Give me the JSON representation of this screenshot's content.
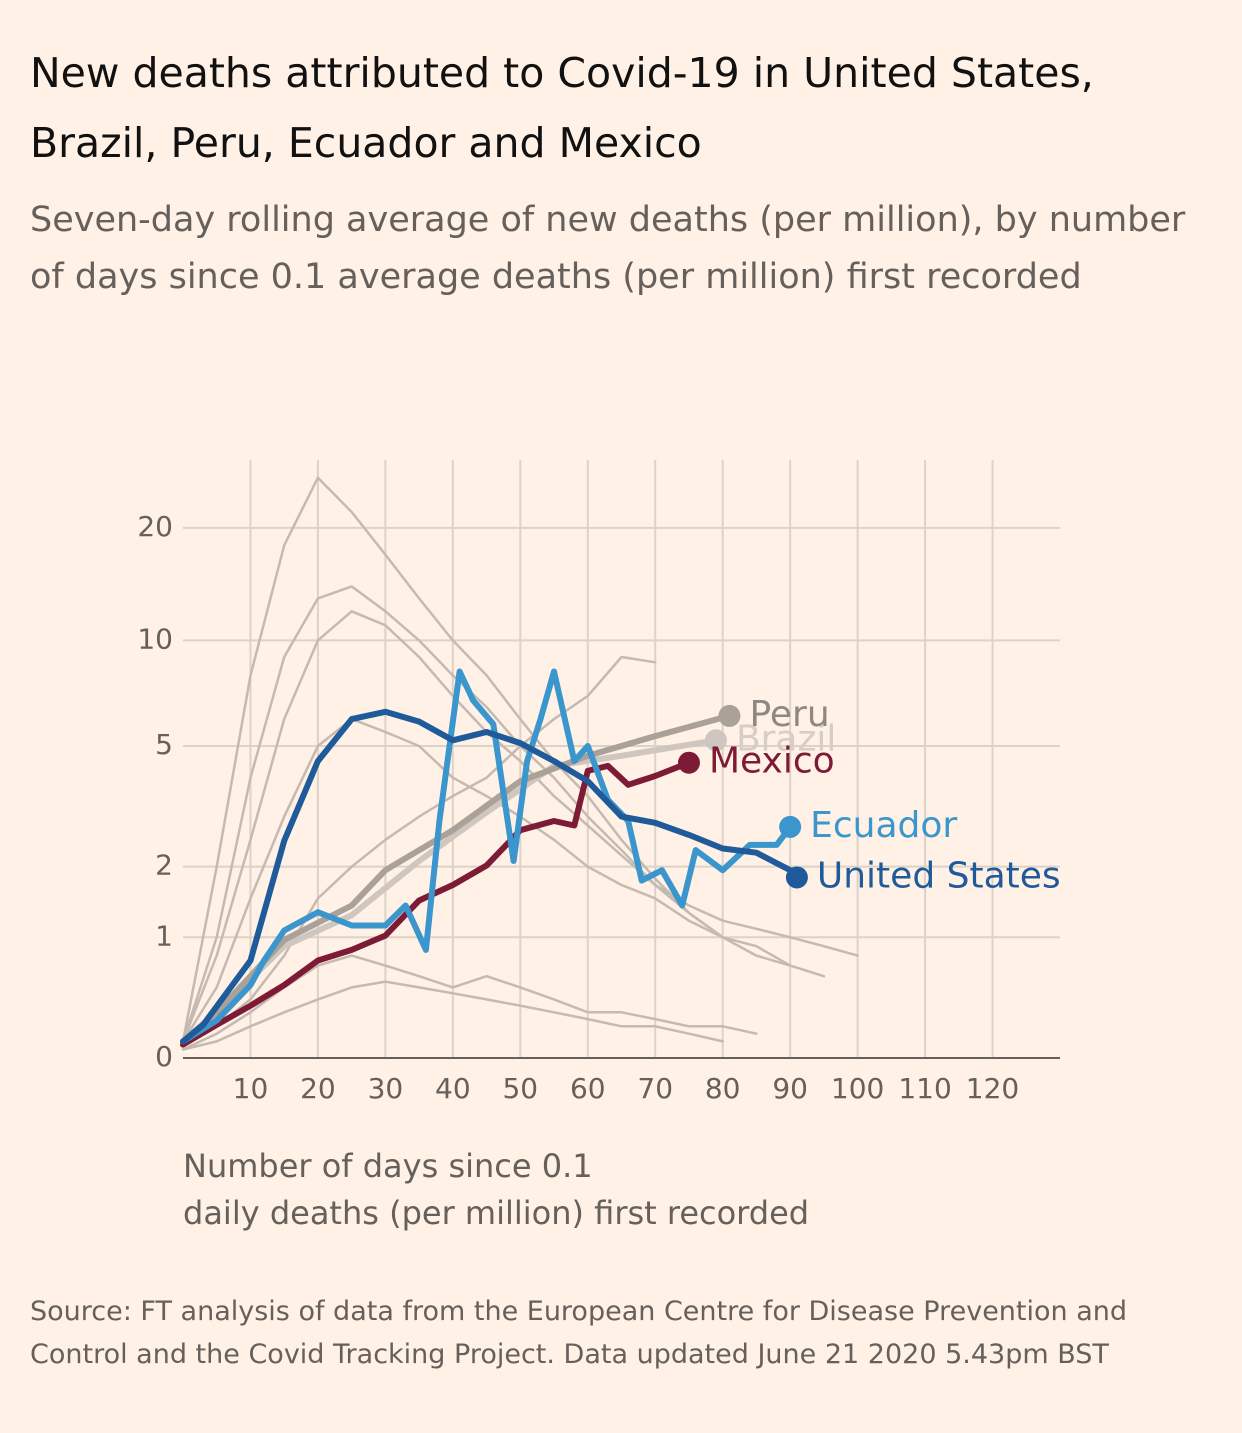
{
  "chart_data": {
    "type": "line",
    "title": "New deaths attributed to Covid-19 in United States, Brazil, Peru, Ecuador and Mexico",
    "subtitle": "Seven-day rolling average of new deaths (per million), by number of days since 0.1 average deaths (per million) first recorded",
    "x_label": [
      "Number of days since 0.1",
      "daily deaths (per million) first recorded"
    ],
    "source": "Source: FT analysis of data from the European Centre for Disease Prevention and Control and the Covid Tracking Project. Data updated June 21 2020 5.43pm BST",
    "yscale": "log1p",
    "xlim": [
      0,
      130
    ],
    "ylim": [
      0,
      30
    ],
    "xticks": [
      10,
      20,
      30,
      40,
      50,
      60,
      70,
      80,
      90,
      100,
      110,
      120
    ],
    "yticks": [
      0,
      1,
      2,
      5,
      10,
      20
    ],
    "grid": true,
    "background": {
      "color": "#c4bab2",
      "x": [
        0,
        5,
        10,
        15,
        20,
        25,
        30,
        35,
        40,
        45,
        50,
        55,
        60,
        65,
        70,
        75,
        80,
        85,
        90,
        95,
        100
      ],
      "lines": [
        [
          0.1,
          2,
          8,
          18,
          27,
          22,
          17,
          13,
          10,
          8,
          6,
          4.5,
          3.5,
          2.5,
          1.8,
          1.3,
          1,
          null,
          null,
          null,
          null
        ],
        [
          0.1,
          1,
          4,
          9,
          13,
          14,
          12,
          10,
          8,
          6.5,
          5,
          4,
          3,
          2.3,
          1.7,
          1.3,
          1,
          0.8,
          0.7,
          null,
          null
        ],
        [
          0.1,
          0.2,
          0.4,
          0.8,
          1.5,
          2,
          2.5,
          3,
          3.5,
          4,
          5,
          6,
          7,
          9,
          8.7,
          null,
          null,
          null,
          null,
          null,
          null
        ],
        [
          0.1,
          0.5,
          1.5,
          3,
          5,
          6,
          5.5,
          5,
          4,
          3.5,
          3,
          2.5,
          2,
          1.7,
          1.5,
          1.2,
          1,
          0.9,
          0.7,
          0.6,
          null
        ],
        [
          0.05,
          0.1,
          0.2,
          0.3,
          0.4,
          0.5,
          0.55,
          0.5,
          0.45,
          0.4,
          0.35,
          0.3,
          0.25,
          0.2,
          0.2,
          0.15,
          0.1,
          null,
          null,
          null,
          null
        ],
        [
          0.05,
          0.15,
          0.3,
          0.5,
          0.7,
          0.8,
          0.7,
          0.6,
          0.5,
          0.6,
          0.5,
          0.4,
          0.3,
          0.3,
          0.25,
          0.2,
          0.2,
          0.15,
          null,
          null,
          null
        ],
        [
          0.1,
          0.8,
          2.5,
          6,
          10,
          12,
          11,
          9,
          7,
          5.5,
          4.5,
          3.5,
          2.8,
          2.2,
          1.7,
          1.4,
          1.2,
          1.1,
          1,
          0.9,
          0.8
        ]
      ]
    },
    "series": [
      {
        "name": "Brazil",
        "color": "#cfc6bf",
        "label_color": "#d6cdc6",
        "x": [
          0,
          5,
          15,
          25,
          35,
          45,
          55,
          65,
          79
        ],
        "values": [
          0.1,
          0.3,
          0.9,
          1.27,
          2.1,
          3.1,
          4.35,
          4.67,
          5.2
        ]
      },
      {
        "name": "Peru",
        "color": "#aaa199",
        "label_color": "#8f8781",
        "x": [
          0,
          5,
          15,
          25,
          30,
          40,
          50,
          60,
          70,
          81
        ],
        "values": [
          0.1,
          0.3,
          0.97,
          1.4,
          1.94,
          2.7,
          3.9,
          4.67,
          5.35,
          6.13
        ]
      },
      {
        "name": "Mexico",
        "color": "#7d1a35",
        "label_color": "#7d1a35",
        "x": [
          0,
          5,
          10,
          15,
          20,
          25,
          30,
          35,
          40,
          45,
          50,
          55,
          58,
          60,
          63,
          66,
          70,
          75
        ],
        "values": [
          0.08,
          0.21,
          0.35,
          0.52,
          0.75,
          0.86,
          1.02,
          1.47,
          1.7,
          2.02,
          2.7,
          2.9,
          2.8,
          4.2,
          4.35,
          3.8,
          4.05,
          4.45
        ]
      },
      {
        "name": "Ecuador",
        "color": "#3a96cc",
        "label_color": "#3a96cc",
        "x": [
          0,
          5,
          10,
          12,
          15,
          20,
          25,
          30,
          33,
          36,
          38,
          41,
          43,
          46,
          49,
          51,
          53,
          55,
          58,
          60,
          63,
          66,
          68,
          71,
          74,
          76,
          80,
          84,
          88,
          90
        ],
        "values": [
          0.1,
          0.24,
          0.52,
          0.75,
          1.08,
          1.31,
          1.14,
          1.14,
          1.4,
          0.86,
          2.9,
          8.2,
          6.8,
          5.8,
          2.1,
          4.5,
          6.0,
          8.2,
          4.5,
          5.0,
          3.4,
          2.9,
          1.77,
          1.94,
          1.4,
          2.3,
          1.94,
          2.4,
          2.4,
          2.77
        ]
      },
      {
        "name": "United States",
        "color": "#1f5a9a",
        "label_color": "#1f5a9a",
        "x": [
          0,
          3,
          10,
          15,
          20,
          25,
          30,
          35,
          40,
          45,
          50,
          55,
          60,
          65,
          70,
          75,
          80,
          85,
          90,
          91
        ],
        "values": [
          0.1,
          0.21,
          0.75,
          2.48,
          4.5,
          6.0,
          6.3,
          5.9,
          5.2,
          5.5,
          5.1,
          4.5,
          3.9,
          3.0,
          2.86,
          2.6,
          2.33,
          2.25,
          1.94,
          1.82
        ]
      }
    ]
  }
}
